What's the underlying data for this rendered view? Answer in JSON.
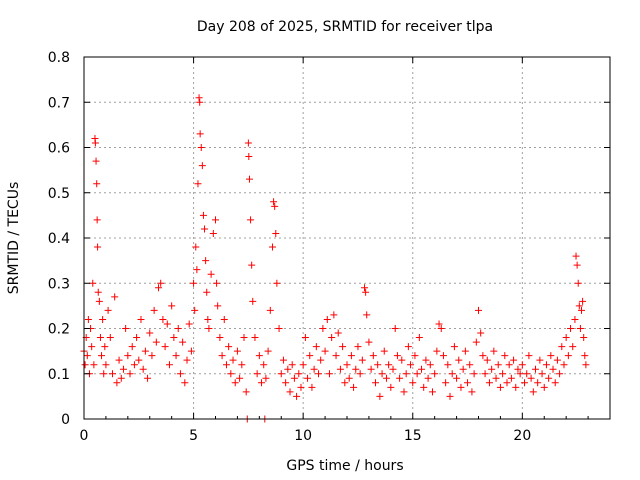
{
  "chart_data": {
    "type": "scatter",
    "title": "Day 208 of 2025, SRMTID for receiver tlpa",
    "xlabel": "GPS time / hours",
    "ylabel": "SRMTID / TECUs",
    "xlim": [
      0,
      24
    ],
    "ylim": [
      0,
      0.8
    ],
    "xticks": [
      0,
      5,
      10,
      15,
      20
    ],
    "xtick_labels": [
      "0",
      "5",
      "10",
      "15",
      "20"
    ],
    "yticks": [
      0,
      0.1,
      0.2,
      0.3,
      0.4,
      0.5,
      0.6,
      0.7,
      0.8
    ],
    "ytick_labels": [
      "0",
      "0.1",
      "0.2",
      "0.3",
      "0.4",
      "0.5",
      "0.6",
      "0.7",
      "0.8"
    ],
    "grid": true,
    "marker": "+",
    "colors": {
      "series": "#ff0000",
      "grid": "#a0a0a0",
      "frame": "#000000"
    },
    "series": [
      {
        "name": "SRMTID",
        "points": [
          [
            0.0,
            0.15
          ],
          [
            0.05,
            0.12
          ],
          [
            0.1,
            0.18
          ],
          [
            0.15,
            0.14
          ],
          [
            0.2,
            0.22
          ],
          [
            0.25,
            0.1
          ],
          [
            0.3,
            0.2
          ],
          [
            0.35,
            0.16
          ],
          [
            0.4,
            0.3
          ],
          [
            0.45,
            0.12
          ],
          [
            0.5,
            0.62
          ],
          [
            0.52,
            0.61
          ],
          [
            0.55,
            0.57
          ],
          [
            0.58,
            0.52
          ],
          [
            0.6,
            0.44
          ],
          [
            0.62,
            0.38
          ],
          [
            0.65,
            0.28
          ],
          [
            0.7,
            0.26
          ],
          [
            0.75,
            0.18
          ],
          [
            0.8,
            0.14
          ],
          [
            0.85,
            0.22
          ],
          [
            0.9,
            0.1
          ],
          [
            0.95,
            0.16
          ],
          [
            1.0,
            0.12
          ],
          [
            1.1,
            0.24
          ],
          [
            1.2,
            0.18
          ],
          [
            1.3,
            0.1
          ],
          [
            1.4,
            0.27
          ],
          [
            1.5,
            0.08
          ],
          [
            1.6,
            0.13
          ],
          [
            1.7,
            0.09
          ],
          [
            1.8,
            0.11
          ],
          [
            1.9,
            0.2
          ],
          [
            2.0,
            0.14
          ],
          [
            2.1,
            0.1
          ],
          [
            2.2,
            0.16
          ],
          [
            2.3,
            0.12
          ],
          [
            2.4,
            0.18
          ],
          [
            2.5,
            0.13
          ],
          [
            2.6,
            0.22
          ],
          [
            2.7,
            0.11
          ],
          [
            2.8,
            0.15
          ],
          [
            2.9,
            0.09
          ],
          [
            3.0,
            0.19
          ],
          [
            3.1,
            0.14
          ],
          [
            3.2,
            0.24
          ],
          [
            3.3,
            0.17
          ],
          [
            3.4,
            0.29
          ],
          [
            3.5,
            0.3
          ],
          [
            3.6,
            0.22
          ],
          [
            3.7,
            0.16
          ],
          [
            3.8,
            0.21
          ],
          [
            3.9,
            0.12
          ],
          [
            4.0,
            0.25
          ],
          [
            4.1,
            0.18
          ],
          [
            4.2,
            0.14
          ],
          [
            4.3,
            0.2
          ],
          [
            4.4,
            0.1
          ],
          [
            4.5,
            0.17
          ],
          [
            4.6,
            0.08
          ],
          [
            4.7,
            0.13
          ],
          [
            4.8,
            0.21
          ],
          [
            4.9,
            0.15
          ],
          [
            5.0,
            0.3
          ],
          [
            5.05,
            0.24
          ],
          [
            5.1,
            0.38
          ],
          [
            5.15,
            0.33
          ],
          [
            5.2,
            0.52
          ],
          [
            5.25,
            0.71
          ],
          [
            5.28,
            0.7
          ],
          [
            5.3,
            0.63
          ],
          [
            5.35,
            0.6
          ],
          [
            5.4,
            0.56
          ],
          [
            5.45,
            0.45
          ],
          [
            5.5,
            0.42
          ],
          [
            5.55,
            0.35
          ],
          [
            5.6,
            0.28
          ],
          [
            5.65,
            0.22
          ],
          [
            5.7,
            0.2
          ],
          [
            5.8,
            0.32
          ],
          [
            5.9,
            0.41
          ],
          [
            6.0,
            0.44
          ],
          [
            6.05,
            0.3
          ],
          [
            6.1,
            0.25
          ],
          [
            6.2,
            0.18
          ],
          [
            6.3,
            0.14
          ],
          [
            6.4,
            0.22
          ],
          [
            6.5,
            0.12
          ],
          [
            6.6,
            0.16
          ],
          [
            6.7,
            0.1
          ],
          [
            6.8,
            0.13
          ],
          [
            6.9,
            0.08
          ],
          [
            7.0,
            0.15
          ],
          [
            7.1,
            0.09
          ],
          [
            7.2,
            0.12
          ],
          [
            7.3,
            0.18
          ],
          [
            7.4,
            0.06
          ],
          [
            7.45,
            0.0
          ],
          [
            7.5,
            0.61
          ],
          [
            7.52,
            0.58
          ],
          [
            7.55,
            0.53
          ],
          [
            7.6,
            0.44
          ],
          [
            7.65,
            0.34
          ],
          [
            7.7,
            0.26
          ],
          [
            7.8,
            0.18
          ],
          [
            7.9,
            0.1
          ],
          [
            8.0,
            0.14
          ],
          [
            8.1,
            0.08
          ],
          [
            8.2,
            0.12
          ],
          [
            8.25,
            0.0
          ],
          [
            8.3,
            0.09
          ],
          [
            8.4,
            0.15
          ],
          [
            8.5,
            0.24
          ],
          [
            8.6,
            0.38
          ],
          [
            8.65,
            0.48
          ],
          [
            8.7,
            0.47
          ],
          [
            8.75,
            0.41
          ],
          [
            8.8,
            0.3
          ],
          [
            8.9,
            0.2
          ],
          [
            9.0,
            0.1
          ],
          [
            9.1,
            0.13
          ],
          [
            9.2,
            0.08
          ],
          [
            9.3,
            0.11
          ],
          [
            9.4,
            0.06
          ],
          [
            9.5,
            0.12
          ],
          [
            9.6,
            0.09
          ],
          [
            9.7,
            0.05
          ],
          [
            9.8,
            0.1
          ],
          [
            9.9,
            0.07
          ],
          [
            10.0,
            0.12
          ],
          [
            10.1,
            0.18
          ],
          [
            10.2,
            0.09
          ],
          [
            10.3,
            0.14
          ],
          [
            10.4,
            0.07
          ],
          [
            10.5,
            0.11
          ],
          [
            10.6,
            0.16
          ],
          [
            10.7,
            0.1
          ],
          [
            10.8,
            0.13
          ],
          [
            10.9,
            0.2
          ],
          [
            11.0,
            0.15
          ],
          [
            11.1,
            0.22
          ],
          [
            11.2,
            0.1
          ],
          [
            11.3,
            0.18
          ],
          [
            11.4,
            0.23
          ],
          [
            11.5,
            0.14
          ],
          [
            11.6,
            0.19
          ],
          [
            11.7,
            0.11
          ],
          [
            11.8,
            0.16
          ],
          [
            11.9,
            0.08
          ],
          [
            12.0,
            0.12
          ],
          [
            12.1,
            0.09
          ],
          [
            12.2,
            0.14
          ],
          [
            12.3,
            0.07
          ],
          [
            12.4,
            0.11
          ],
          [
            12.5,
            0.16
          ],
          [
            12.6,
            0.1
          ],
          [
            12.7,
            0.13
          ],
          [
            12.8,
            0.29
          ],
          [
            12.85,
            0.28
          ],
          [
            12.9,
            0.23
          ],
          [
            13.0,
            0.17
          ],
          [
            13.1,
            0.11
          ],
          [
            13.2,
            0.14
          ],
          [
            13.3,
            0.08
          ],
          [
            13.4,
            0.12
          ],
          [
            13.5,
            0.05
          ],
          [
            13.6,
            0.1
          ],
          [
            13.7,
            0.15
          ],
          [
            13.8,
            0.09
          ],
          [
            13.9,
            0.12
          ],
          [
            14.0,
            0.07
          ],
          [
            14.1,
            0.11
          ],
          [
            14.2,
            0.2
          ],
          [
            14.3,
            0.14
          ],
          [
            14.4,
            0.09
          ],
          [
            14.5,
            0.13
          ],
          [
            14.6,
            0.06
          ],
          [
            14.7,
            0.1
          ],
          [
            14.8,
            0.16
          ],
          [
            14.9,
            0.12
          ],
          [
            15.0,
            0.08
          ],
          [
            15.1,
            0.14
          ],
          [
            15.2,
            0.1
          ],
          [
            15.3,
            0.18
          ],
          [
            15.4,
            0.11
          ],
          [
            15.5,
            0.07
          ],
          [
            15.6,
            0.13
          ],
          [
            15.7,
            0.09
          ],
          [
            15.8,
            0.12
          ],
          [
            15.9,
            0.06
          ],
          [
            16.0,
            0.1
          ],
          [
            16.1,
            0.15
          ],
          [
            16.2,
            0.21
          ],
          [
            16.3,
            0.2
          ],
          [
            16.4,
            0.14
          ],
          [
            16.5,
            0.08
          ],
          [
            16.6,
            0.12
          ],
          [
            16.7,
            0.05
          ],
          [
            16.8,
            0.1
          ],
          [
            16.9,
            0.16
          ],
          [
            17.0,
            0.09
          ],
          [
            17.1,
            0.13
          ],
          [
            17.2,
            0.07
          ],
          [
            17.3,
            0.11
          ],
          [
            17.4,
            0.15
          ],
          [
            17.5,
            0.08
          ],
          [
            17.6,
            0.12
          ],
          [
            17.7,
            0.06
          ],
          [
            17.8,
            0.1
          ],
          [
            17.9,
            0.17
          ],
          [
            18.0,
            0.24
          ],
          [
            18.1,
            0.19
          ],
          [
            18.2,
            0.14
          ],
          [
            18.3,
            0.1
          ],
          [
            18.4,
            0.13
          ],
          [
            18.5,
            0.08
          ],
          [
            18.6,
            0.11
          ],
          [
            18.7,
            0.15
          ],
          [
            18.8,
            0.09
          ],
          [
            18.9,
            0.12
          ],
          [
            19.0,
            0.07
          ],
          [
            19.1,
            0.1
          ],
          [
            19.2,
            0.14
          ],
          [
            19.3,
            0.08
          ],
          [
            19.4,
            0.12
          ],
          [
            19.5,
            0.09
          ],
          [
            19.6,
            0.13
          ],
          [
            19.7,
            0.07
          ],
          [
            19.8,
            0.11
          ],
          [
            19.9,
            0.1
          ],
          [
            20.0,
            0.12
          ],
          [
            20.1,
            0.08
          ],
          [
            20.2,
            0.1
          ],
          [
            20.3,
            0.14
          ],
          [
            20.4,
            0.09
          ],
          [
            20.5,
            0.06
          ],
          [
            20.6,
            0.11
          ],
          [
            20.7,
            0.08
          ],
          [
            20.8,
            0.13
          ],
          [
            20.9,
            0.1
          ],
          [
            21.0,
            0.07
          ],
          [
            21.1,
            0.12
          ],
          [
            21.2,
            0.09
          ],
          [
            21.3,
            0.14
          ],
          [
            21.4,
            0.11
          ],
          [
            21.5,
            0.08
          ],
          [
            21.6,
            0.13
          ],
          [
            21.7,
            0.1
          ],
          [
            21.8,
            0.16
          ],
          [
            21.9,
            0.12
          ],
          [
            22.0,
            0.18
          ],
          [
            22.1,
            0.14
          ],
          [
            22.2,
            0.2
          ],
          [
            22.3,
            0.16
          ],
          [
            22.4,
            0.22
          ],
          [
            22.45,
            0.36
          ],
          [
            22.5,
            0.34
          ],
          [
            22.55,
            0.3
          ],
          [
            22.6,
            0.25
          ],
          [
            22.65,
            0.2
          ],
          [
            22.7,
            0.24
          ],
          [
            22.75,
            0.26
          ],
          [
            22.8,
            0.18
          ],
          [
            22.85,
            0.14
          ],
          [
            22.9,
            0.12
          ]
        ]
      }
    ]
  }
}
